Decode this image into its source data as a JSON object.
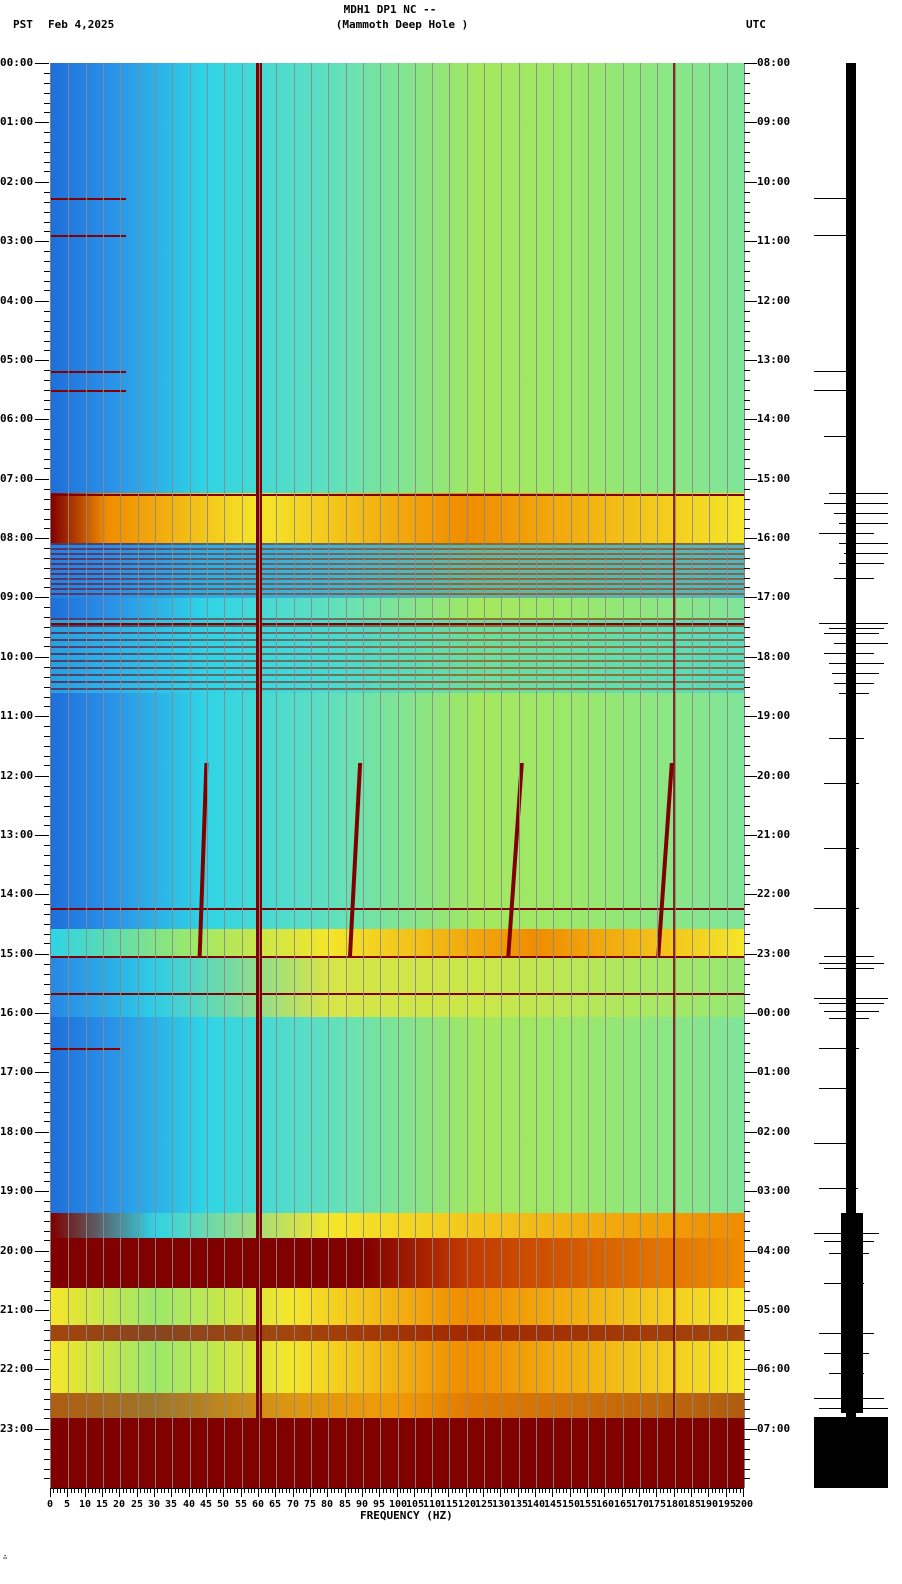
{
  "header": {
    "title_line1": "MDH1 DP1 NC --",
    "title_line2": "(Mammoth Deep Hole )",
    "left_timezone": "PST",
    "date": "Feb 4,2025",
    "right_timezone": "UTC"
  },
  "footer": {
    "corner_glyph": "∴"
  },
  "colors": {
    "background": "#ffffff",
    "low_power": "#1e6fd9",
    "mid_low": "#2fd3e6",
    "mid": "#9be86a",
    "mid_high": "#f5e62a",
    "high": "#f08c00",
    "max": "#800000",
    "grid": "#8a8a8a"
  },
  "chart_data": {
    "type": "heatmap",
    "title": "MDH1 DP1 NC -- (Mammoth Deep Hole )",
    "subtitle": "PST Feb 4,2025 / UTC",
    "xlabel": "FREQUENCY (HZ)",
    "ylabel_left": "PST",
    "ylabel_right": "UTC",
    "xlim": [
      0,
      200
    ],
    "x_ticks": [
      "0",
      "5",
      "10",
      "15",
      "20",
      "25",
      "30",
      "35",
      "40",
      "45",
      "50",
      "55",
      "60",
      "65",
      "70",
      "75",
      "80",
      "85",
      "90",
      "95",
      "100",
      "105",
      "110",
      "115",
      "120",
      "125",
      "130",
      "135",
      "140",
      "145",
      "150",
      "155",
      "160",
      "165",
      "170",
      "175",
      "180",
      "185",
      "190",
      "195",
      "200"
    ],
    "y_ticks_left": [
      "00:00",
      "01:00",
      "02:00",
      "03:00",
      "04:00",
      "05:00",
      "06:00",
      "07:00",
      "08:00",
      "09:00",
      "10:00",
      "11:00",
      "12:00",
      "13:00",
      "14:00",
      "15:00",
      "16:00",
      "17:00",
      "18:00",
      "19:00",
      "20:00",
      "21:00",
      "22:00",
      "23:00"
    ],
    "y_ticks_right": [
      "08:00",
      "09:00",
      "10:00",
      "11:00",
      "12:00",
      "13:00",
      "14:00",
      "15:00",
      "16:00",
      "17:00",
      "18:00",
      "19:00",
      "20:00",
      "21:00",
      "22:00",
      "23:00",
      "00:00",
      "01:00",
      "02:00",
      "03:00",
      "04:00",
      "05:00",
      "06:00",
      "07:00"
    ],
    "grid": true,
    "colormap": "jet (blue=low, dark red=high)",
    "persistent_lines_hz": [
      60,
      180
    ],
    "features": [
      {
        "time_pst": "07:15-08:40",
        "description": "broadband high-power burst"
      },
      {
        "time_pst": "09:30-10:50",
        "description": "intermittent broadband energy bursts"
      },
      {
        "time_pst": "11:00-15:00",
        "description": "wandering narrowband tracks near 45, 88, 135 and 175 Hz"
      },
      {
        "time_pst": "14:45-15:00",
        "description": "elevated power 75-200 Hz"
      },
      {
        "time_pst": "19:40-22:50",
        "description": "strong broadband noise"
      },
      {
        "time_pst": "22:50-24:00",
        "description": "saturated (max power) all frequencies"
      }
    ],
    "waveform_trace": {
      "position": "right of spectrogram",
      "events_pst": [
        "07:15-07:45",
        "09:30-10:40",
        "15:00-15:10",
        "15:40-15:55",
        "19:40-22:40",
        "22:50-24:00 saturated"
      ]
    }
  }
}
